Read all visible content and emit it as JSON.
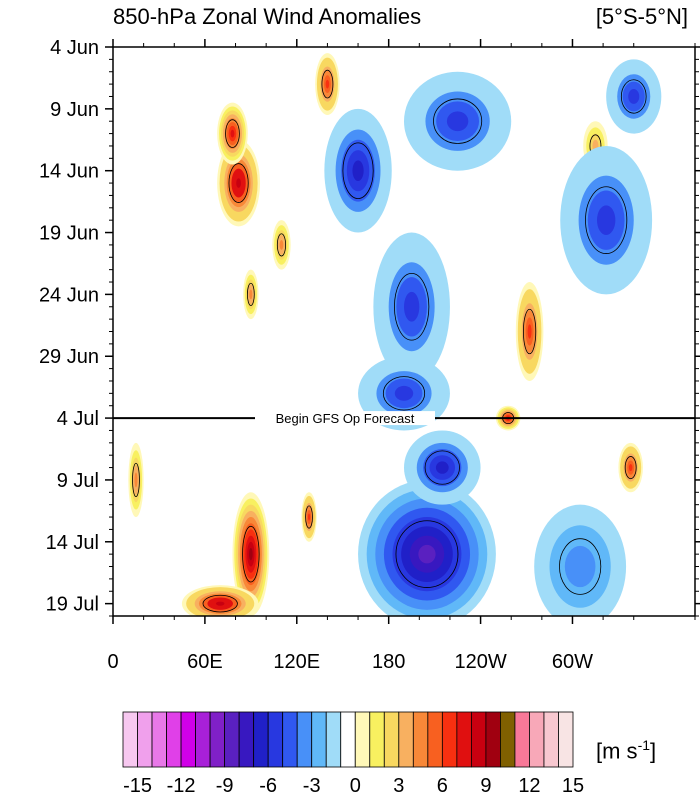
{
  "chart_data": {
    "type": "heatmap",
    "title": "850-hPa Zonal Wind Anomalies",
    "region": "[5°S-5°N]",
    "x_ticks": [
      "0",
      "60E",
      "120E",
      "180",
      "120W",
      "60W"
    ],
    "x_tick_lon": [
      0,
      60,
      120,
      180,
      240,
      300
    ],
    "x_range": [
      0,
      380
    ],
    "y_ticks": [
      "4 Jun",
      "9 Jun",
      "14 Jun",
      "19 Jun",
      "24 Jun",
      "29 Jun",
      "4 Jul",
      "9 Jul",
      "14 Jul",
      "19 Jul"
    ],
    "y_tick_day": [
      0,
      5,
      10,
      15,
      20,
      25,
      30,
      35,
      40,
      45
    ],
    "y_range": [
      0,
      46
    ],
    "annotation": "Begin GFS Op Forecast",
    "annotation_day": 30,
    "colorbar": {
      "units_label": "[m s",
      "units_exp": "-1",
      "units_close": "]",
      "tick_labels": [
        "-15",
        "-12",
        "-9",
        "-6",
        "-3",
        "0",
        "3",
        "6",
        "9",
        "12",
        "15"
      ],
      "levels": [
        -15,
        -14,
        -13,
        -12,
        -11,
        -10,
        -9,
        -8,
        -7,
        -6,
        -5,
        -4,
        -3,
        -2,
        -1,
        0,
        1,
        2,
        3,
        4,
        5,
        6,
        7,
        8,
        9,
        10,
        11,
        12,
        13,
        14,
        15
      ],
      "colors": [
        "#f7c8f0",
        "#f0a0ec",
        "#e878e8",
        "#e040e8",
        "#d000e8",
        "#a820d8",
        "#8020c8",
        "#5a20c0",
        "#3818c0",
        "#2020c8",
        "#2838e0",
        "#3058f0",
        "#4890f8",
        "#60b8f8",
        "#a0dcf8",
        "#ffffff",
        "#fff8b8",
        "#f8f060",
        "#f8d860",
        "#f8b060",
        "#f88838",
        "#f86020",
        "#f83010",
        "#e01010",
        "#c80010",
        "#a00010",
        "#806000",
        "#f87898",
        "#f8a8b8",
        "#f8c8d0",
        "#f8e4e4"
      ]
    },
    "features": [
      {
        "kind": "westerly",
        "lon": 82,
        "day": 11,
        "rlon": 14,
        "rday": 3.5,
        "value": 9
      },
      {
        "kind": "westerly",
        "lon": 78,
        "day": 7,
        "rlon": 10,
        "rday": 2.5,
        "value": 8
      },
      {
        "kind": "westerly",
        "lon": 140,
        "day": 3,
        "rlon": 8,
        "rday": 2.5,
        "value": 7
      },
      {
        "kind": "westerly",
        "lon": 110,
        "day": 16,
        "rlon": 6,
        "rday": 2,
        "value": 5
      },
      {
        "kind": "westerly",
        "lon": 90,
        "day": 20,
        "rlon": 5,
        "rday": 2,
        "value": 5
      },
      {
        "kind": "westerly",
        "lon": 272,
        "day": 23,
        "rlon": 9,
        "rday": 4,
        "value": 7
      },
      {
        "kind": "westerly",
        "lon": 258,
        "day": 30,
        "rlon": 8,
        "rday": 1,
        "value": 8
      },
      {
        "kind": "westerly",
        "lon": 90,
        "day": 41,
        "rlon": 12,
        "rday": 5,
        "value": 10
      },
      {
        "kind": "westerly",
        "lon": 70,
        "day": 45,
        "rlon": 25,
        "rday": 1.5,
        "value": 9
      },
      {
        "kind": "westerly",
        "lon": 128,
        "day": 38,
        "rlon": 5,
        "rday": 2,
        "value": 7
      },
      {
        "kind": "westerly",
        "lon": 338,
        "day": 34,
        "rlon": 8,
        "rday": 2,
        "value": 7
      },
      {
        "kind": "westerly",
        "lon": 15,
        "day": 35,
        "rlon": 5,
        "rday": 3,
        "value": 5
      },
      {
        "kind": "westerly",
        "lon": 315,
        "day": 8,
        "rlon": 8,
        "rday": 2,
        "value": 4
      },
      {
        "kind": "easterly",
        "lon": 205,
        "day": 41,
        "rlon": 45,
        "rday": 6,
        "value": -8
      },
      {
        "kind": "easterly",
        "lon": 215,
        "day": 34,
        "rlon": 25,
        "rday": 3,
        "value": -6
      },
      {
        "kind": "easterly",
        "lon": 160,
        "day": 10,
        "rlon": 22,
        "rday": 5,
        "value": -6
      },
      {
        "kind": "easterly",
        "lon": 195,
        "day": 21,
        "rlon": 25,
        "rday": 6,
        "value": -5
      },
      {
        "kind": "easterly",
        "lon": 225,
        "day": 6,
        "rlon": 35,
        "rday": 4,
        "value": -5
      },
      {
        "kind": "easterly",
        "lon": 322,
        "day": 14,
        "rlon": 30,
        "rday": 6,
        "value": -5
      },
      {
        "kind": "easterly",
        "lon": 340,
        "day": 4,
        "rlon": 18,
        "rday": 3,
        "value": -5
      },
      {
        "kind": "easterly",
        "lon": 190,
        "day": 28,
        "rlon": 30,
        "rday": 3,
        "value": -5
      },
      {
        "kind": "easterly",
        "lon": 305,
        "day": 42,
        "rlon": 30,
        "rday": 5,
        "value": -3
      }
    ]
  }
}
